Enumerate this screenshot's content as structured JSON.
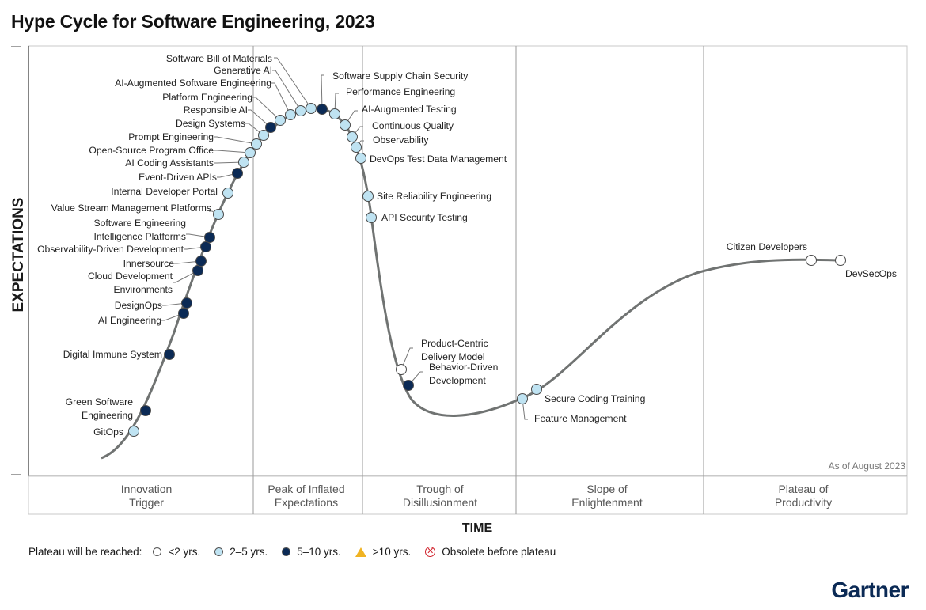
{
  "title": "Hype Cycle for Software Engineering, 2023",
  "y_axis_label": "EXPECTATIONS",
  "x_axis_label": "TIME",
  "as_of": "As of August 2023",
  "brand": "Gartner",
  "phases": [
    {
      "line1": "Innovation",
      "line2": "Trigger"
    },
    {
      "line1": "Peak of Inflated",
      "line2": "Expectations"
    },
    {
      "line1": "Trough of",
      "line2": "Disillusionment"
    },
    {
      "line1": "Slope of",
      "line2": "Enlightenment"
    },
    {
      "line1": "Plateau of",
      "line2": "Productivity"
    }
  ],
  "legend": {
    "title": "Plateau will be reached:",
    "items": [
      {
        "label": "<2 yrs.",
        "color": "#ffffff"
      },
      {
        "label": "2–5 yrs.",
        "color": "#bfe3f2"
      },
      {
        "label": "5–10 yrs.",
        "color": "#0b2a55"
      },
      {
        "label": ">10 yrs.",
        "color": "#f0b323"
      },
      {
        "label": "Obsolete before plateau",
        "color": "#d0202a"
      }
    ]
  },
  "category_colors": {
    "lt2": "#ffffff",
    "2to5": "#bfe3f2",
    "5to10": "#0b2a55"
  },
  "technologies": [
    {
      "name": "GitOps",
      "cat": "2to5"
    },
    {
      "name": "Green Software Engineering",
      "cat": "5to10"
    },
    {
      "name": "Digital Immune System",
      "cat": "5to10"
    },
    {
      "name": "AI Engineering",
      "cat": "5to10"
    },
    {
      "name": "DesignOps",
      "cat": "5to10"
    },
    {
      "name": "Cloud Development Environments",
      "cat": "5to10"
    },
    {
      "name": "Innersource",
      "cat": "5to10"
    },
    {
      "name": "Observability-Driven Development",
      "cat": "5to10"
    },
    {
      "name": "Software Engineering Intelligence Platforms",
      "cat": "5to10"
    },
    {
      "name": "Value Stream Management Platforms",
      "cat": "2to5"
    },
    {
      "name": "Internal Developer Portal",
      "cat": "2to5"
    },
    {
      "name": "Event-Driven APIs",
      "cat": "5to10"
    },
    {
      "name": "AI Coding Assistants",
      "cat": "2to5"
    },
    {
      "name": "Open-Source Program Office",
      "cat": "2to5"
    },
    {
      "name": "Prompt Engineering",
      "cat": "2to5"
    },
    {
      "name": "Design Systems",
      "cat": "2to5"
    },
    {
      "name": "Responsible AI",
      "cat": "5to10"
    },
    {
      "name": "Platform Engineering",
      "cat": "2to5"
    },
    {
      "name": "AI-Augmented Software Engineering",
      "cat": "2to5"
    },
    {
      "name": "Generative AI",
      "cat": "2to5"
    },
    {
      "name": "Software Bill of Materials",
      "cat": "2to5"
    },
    {
      "name": "Software Supply Chain Security",
      "cat": "5to10"
    },
    {
      "name": "Performance Engineering",
      "cat": "2to5"
    },
    {
      "name": "AI-Augmented Testing",
      "cat": "2to5"
    },
    {
      "name": "Continuous Quality",
      "cat": "2to5"
    },
    {
      "name": "Observability",
      "cat": "2to5"
    },
    {
      "name": "DevOps Test Data Management",
      "cat": "2to5"
    },
    {
      "name": "Site Reliability Engineering",
      "cat": "2to5"
    },
    {
      "name": "API Security Testing",
      "cat": "2to5"
    },
    {
      "name": "Product-Centric Delivery Model",
      "cat": "lt2"
    },
    {
      "name": "Behavior-Driven Development",
      "cat": "5to10"
    },
    {
      "name": "Feature Management",
      "cat": "2to5"
    },
    {
      "name": "Secure Coding Training",
      "cat": "2to5"
    },
    {
      "name": "Citizen Developers",
      "cat": "lt2"
    },
    {
      "name": "DevSecOps",
      "cat": "lt2"
    }
  ]
}
